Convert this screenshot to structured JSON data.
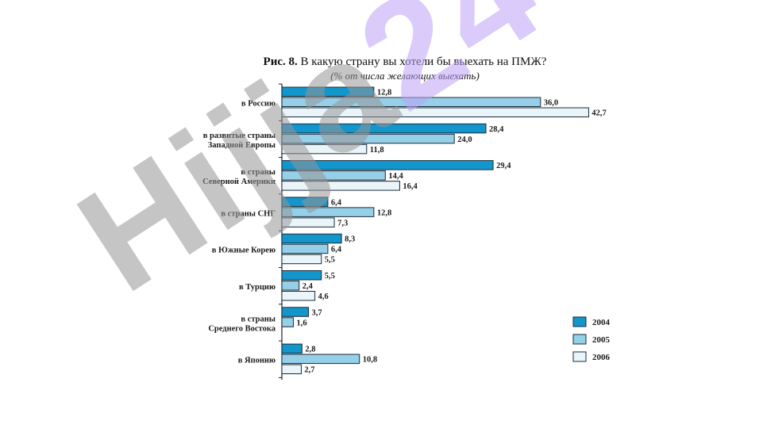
{
  "chart_data": {
    "type": "bar",
    "orientation": "horizontal",
    "title_prefix": "Рис. 8.",
    "title": "В какую страну вы хотели бы выехать на ПМЖ?",
    "subtitle": "(% от числа желающих выехать)",
    "categories": [
      [
        "в Россию"
      ],
      [
        "в развитые страны",
        "Западной Европы"
      ],
      [
        "в страны",
        "Северной Америки"
      ],
      [
        "в страны СНГ"
      ],
      [
        "в Южные Корею"
      ],
      [
        "в Турцию"
      ],
      [
        "в страны",
        "Среднего Востока"
      ],
      [
        "в Японию"
      ]
    ],
    "series": [
      {
        "name": "2004",
        "color": "#1296cc",
        "values": [
          12.8,
          28.4,
          29.4,
          6.4,
          8.3,
          5.5,
          3.7,
          2.8
        ]
      },
      {
        "name": "2005",
        "color": "#96cfe8",
        "values": [
          36.0,
          24.0,
          14.4,
          12.8,
          6.4,
          2.4,
          1.6,
          10.8
        ]
      },
      {
        "name": "2006",
        "color": "#eaf5fa",
        "values": [
          42.7,
          11.8,
          16.4,
          7.3,
          5.5,
          4.6,
          null,
          2.7
        ]
      }
    ],
    "value_labels": [
      [
        "12,8",
        "28,4",
        "29,4",
        "6,4",
        "8,3",
        "5,5",
        "3,7",
        "2,8"
      ],
      [
        "36,0",
        "24,0",
        "14,4",
        "12,8",
        "6,4",
        "2,4",
        "1,6",
        "10,8"
      ],
      [
        "42,7",
        "11,8",
        "16,4",
        "7,3",
        "5,5",
        "4,6",
        "",
        "2,7"
      ]
    ],
    "xlim": [
      0,
      45
    ],
    "legend_position": "bottom-right",
    "grid": false
  },
  "watermark": {
    "text_main": "Hijja",
    "text_accent": "24"
  }
}
